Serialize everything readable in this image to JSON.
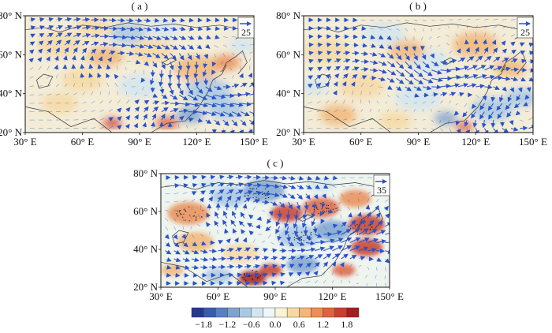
{
  "panels": [
    {
      "id": "a",
      "label": "( a )",
      "ref_vector": "25",
      "y_ticks": [
        "80° N",
        "60° N",
        "40° N",
        "20° N"
      ],
      "x_ticks": [
        "30° E",
        "60° E",
        "90° E",
        "120° E",
        "150° E"
      ],
      "lon_range": [
        30,
        150
      ],
      "lat_range": [
        20,
        80
      ]
    },
    {
      "id": "b",
      "label": "( b )",
      "ref_vector": "25",
      "y_ticks": [
        "80° N",
        "60° N",
        "40° N",
        "20° N"
      ],
      "x_ticks": [
        "30° E",
        "60° E",
        "90° E",
        "120° E",
        "150° E"
      ],
      "lon_range": [
        30,
        150
      ],
      "lat_range": [
        20,
        80
      ]
    },
    {
      "id": "c",
      "label": "( c )",
      "ref_vector": "35",
      "y_ticks": [
        "80° N",
        "60° N",
        "40° N",
        "20° N"
      ],
      "x_ticks": [
        "30° E",
        "60° E",
        "90° E",
        "120° E",
        "150° E"
      ],
      "lon_range": [
        30,
        150
      ],
      "lat_range": [
        20,
        80
      ]
    }
  ],
  "colorbar": {
    "labels": [
      "−1.8",
      "−1.2",
      "−0.6",
      "0.0",
      "0.6",
      "1.2",
      "1.8"
    ],
    "colors": [
      "#253a8f",
      "#3a5da8",
      "#5a7fbd",
      "#7fa3d0",
      "#a9c8e2",
      "#d2e6f0",
      "#eef6f8",
      "#fbf3d4",
      "#f7d9a3",
      "#f2b778",
      "#ea8f58",
      "#dd6442",
      "#c8402f",
      "#a41f22"
    ]
  },
  "colors": {
    "vector": "#2a52c9",
    "coast": "#333333",
    "axis": "#111111"
  }
}
